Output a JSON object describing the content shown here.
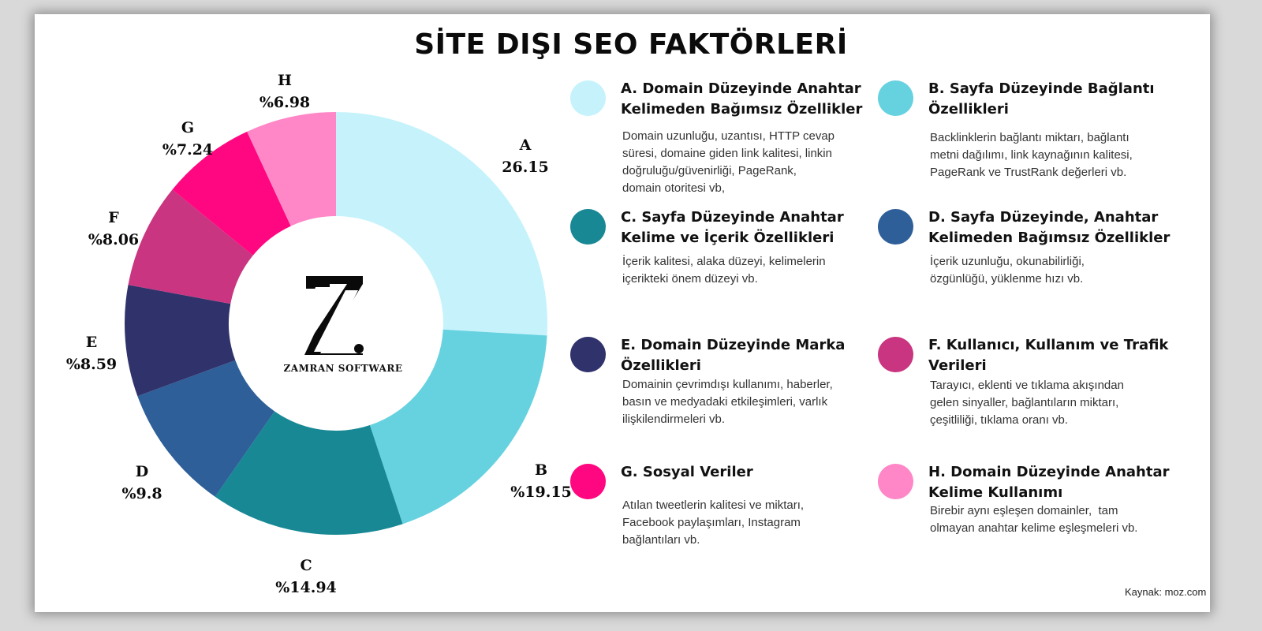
{
  "title": "SİTE DIŞI SEO FAKTÖRLERİ",
  "brand": "ZAMRAN SOFTWARE",
  "logo_letter": "Z",
  "source": "Kaynak: moz.com",
  "chart_data": {
    "type": "pie",
    "donut": true,
    "start": "12 o'clock",
    "direction": "clockwise",
    "slices": [
      {
        "key": "A",
        "label_letter": "A",
        "label_value": "26.15",
        "value": 26.15,
        "color": "#c6f3fb"
      },
      {
        "key": "B",
        "label_letter": "B",
        "label_value": "%19.15",
        "value": 19.15,
        "color": "#66d2e0"
      },
      {
        "key": "C",
        "label_letter": "C",
        "label_value": "%14.94",
        "value": 14.94,
        "color": "#188895"
      },
      {
        "key": "D",
        "label_letter": "D",
        "label_value": "%9.8",
        "value": 9.8,
        "color": "#2e5f99"
      },
      {
        "key": "E",
        "label_letter": "E",
        "label_value": "%8.59",
        "value": 8.59,
        "color": "#30336b"
      },
      {
        "key": "F",
        "label_letter": "F",
        "label_value": "%8.06",
        "value": 8.06,
        "color": "#c93580"
      },
      {
        "key": "G",
        "label_letter": "G",
        "label_value": "%7.24",
        "value": 7.24,
        "color": "#ff0780"
      },
      {
        "key": "H",
        "label_letter": "H",
        "label_value": "%6.98",
        "value": 6.98,
        "color": "#ff87c7"
      }
    ]
  },
  "legend": [
    {
      "key": "A",
      "color": "#c6f3fb",
      "title": [
        "A. Domain Düzeyinde Anahtar",
        "Kelimeden Bağımsız Özellikler"
      ],
      "desc": [
        "Domain uzunluğu, uzantısı, HTTP cevap",
        "süresi, domaine giden link kalitesi, linkin",
        "doğruluğu/güvenirliği, PageRank,",
        "domain otoritesi vb,"
      ]
    },
    {
      "key": "B",
      "color": "#66d2e0",
      "title": [
        "B. Sayfa Düzeyinde Bağlantı",
        "Özellikleri"
      ],
      "desc": [
        "Backlinklerin bağlantı miktarı, bağlantı",
        "metni dağılımı, link kaynağının kalitesi,",
        "PageRank ve TrustRank değerleri vb."
      ]
    },
    {
      "key": "C",
      "color": "#188895",
      "title": [
        "C. Sayfa Düzeyinde Anahtar",
        "Kelime ve İçerik Özellikleri"
      ],
      "desc": [
        "İçerik kalitesi, alaka düzeyi, kelimelerin",
        "içerikteki önem düzeyi vb."
      ]
    },
    {
      "key": "D",
      "color": "#2e5f99",
      "title": [
        "D. Sayfa Düzeyinde, Anahtar",
        "Kelimeden Bağımsız Özellikler"
      ],
      "desc": [
        "İçerik uzunluğu, okunabilirliği,",
        "özgünlüğü, yüklenme hızı vb."
      ]
    },
    {
      "key": "E",
      "color": "#30336b",
      "title": [
        "E. Domain Düzeyinde Marka",
        "Özellikleri"
      ],
      "desc": [
        "Domainin çevrimdışı kullanımı, haberler,",
        "basın ve medyadaki etkileşimleri, varlık",
        "ilişkilendirmeleri vb."
      ]
    },
    {
      "key": "F",
      "color": "#c93580",
      "title": [
        "F. Kullanıcı, Kullanım ve Trafik",
        "Verileri"
      ],
      "desc": [
        "Tarayıcı, eklenti ve tıklama akışından",
        "gelen sinyaller, bağlantıların miktarı,",
        "çeşitliliği, tıklama oranı vb."
      ]
    },
    {
      "key": "G",
      "color": "#ff0780",
      "title": [
        "G. Sosyal Veriler"
      ],
      "desc": [
        "Atılan tweetlerin kalitesi ve miktarı,",
        "Facebook paylaşımları, Instagram",
        "bağlantıları vb."
      ]
    },
    {
      "key": "H",
      "color": "#ff87c7",
      "title": [
        "H. Domain Düzeyinde Anahtar",
        "Kelime Kullanımı"
      ],
      "desc": [
        "Birebir aynı eşleşen domainler,  tam",
        "olmayan anahtar kelime eşleşmeleri vb."
      ]
    }
  ]
}
